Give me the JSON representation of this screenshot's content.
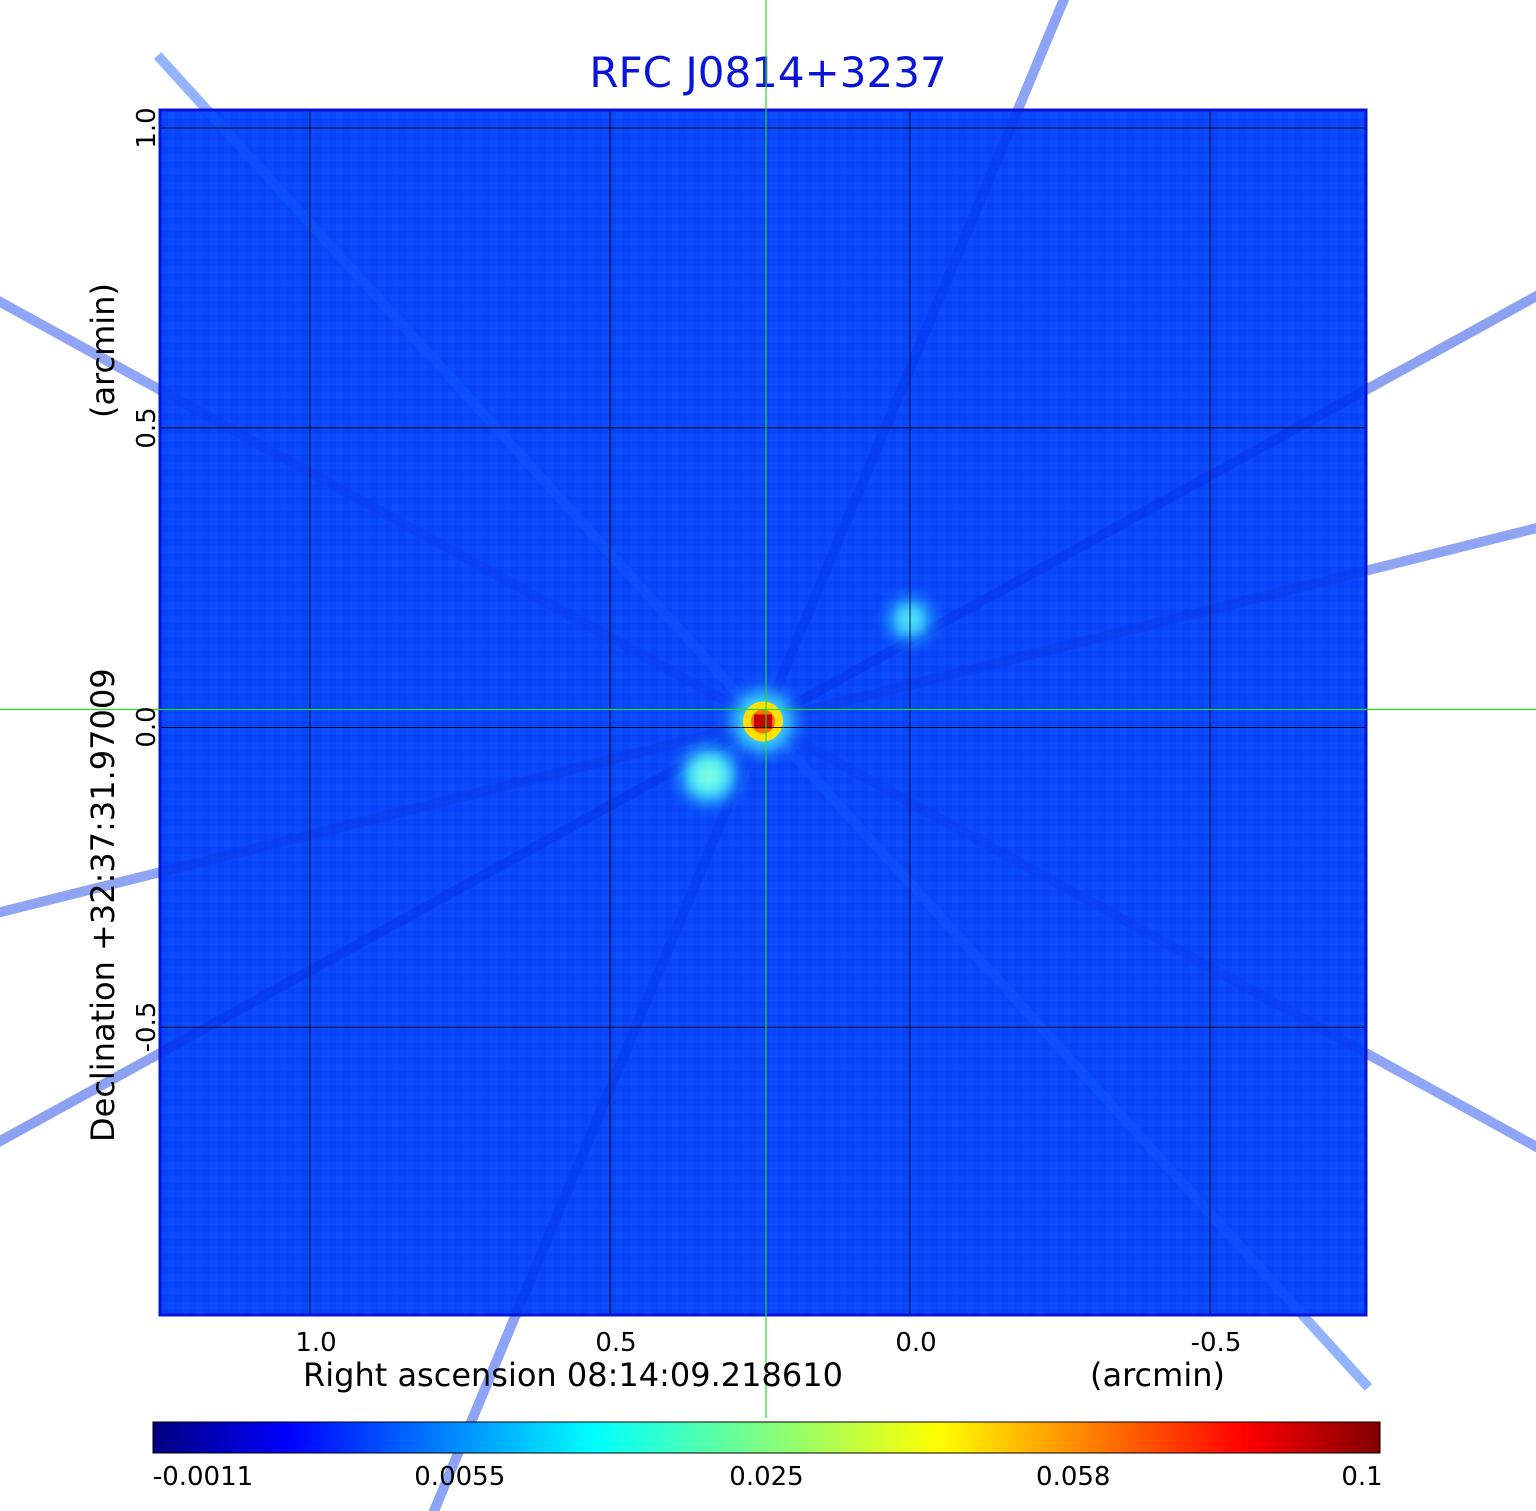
{
  "chart_data": {
    "type": "heatmap",
    "title": "RFC J0814+3237",
    "xlabel_left": "Right ascension  08:14:09.218610",
    "xlabel_right": "(arcmin)",
    "ylabel_left": "Declination  +32:37:31.97009",
    "ylabel_right": "(arcmin)",
    "x_ticks": [
      "1.0",
      "0.5",
      "0.0",
      "-0.5"
    ],
    "x_tick_values": [
      1.0,
      0.5,
      0.0,
      -0.5
    ],
    "y_ticks": [
      "1.0",
      "0.5",
      "0.0",
      "-0.5"
    ],
    "y_tick_values": [
      1.0,
      0.5,
      0.0,
      -0.5
    ],
    "xlim": [
      1.25,
      -0.76
    ],
    "ylim": [
      -0.98,
      1.03
    ],
    "grid": true,
    "crosshair": {
      "x": 0.24,
      "y": 0.03,
      "color": "#22dd22"
    },
    "colorscale": "jet",
    "colorbar_ticks": [
      "-0.0011",
      "0.0055",
      "0.025",
      "0.058",
      "0.1"
    ],
    "colorbar_tick_values": [
      -0.0011,
      0.0055,
      0.025,
      0.058,
      0.1
    ],
    "background_level": 0.0002,
    "sources": [
      {
        "x": 0.245,
        "y": 0.01,
        "peak": 0.1
      },
      {
        "x": 0.335,
        "y": -0.08,
        "peak": 0.018
      },
      {
        "x": 0.0,
        "y": 0.18,
        "peak": 0.01
      }
    ]
  }
}
